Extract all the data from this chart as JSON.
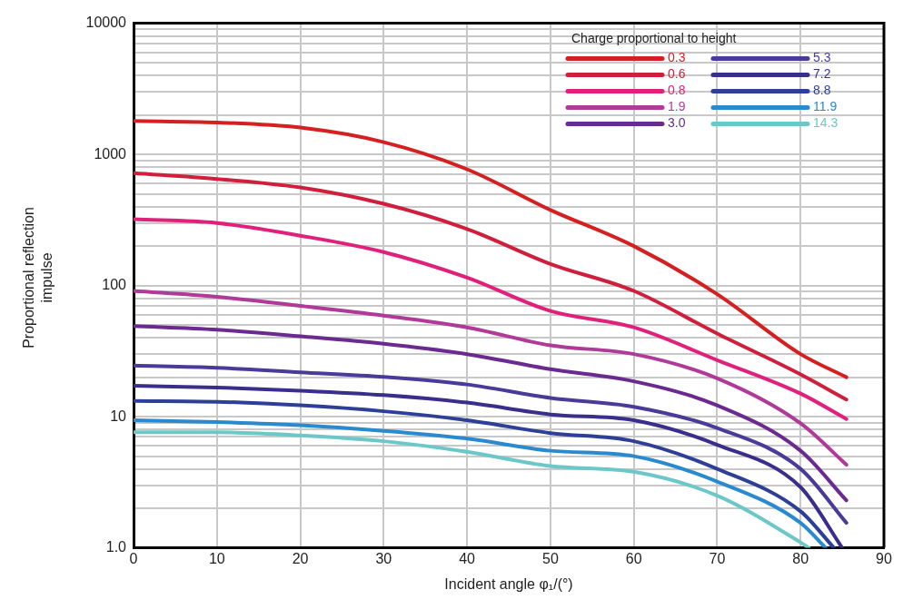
{
  "chart_data": {
    "type": "line",
    "xlabel": "Incident angle φ₁/(°)",
    "ylabel": "Proportional reflection impulse",
    "legend_title": "Charge proportional to height",
    "log": "y",
    "grid": true,
    "legend": "top right",
    "marker": "none",
    "xlim": [
      0,
      90
    ],
    "xticks": [
      0,
      10,
      20,
      30,
      40,
      50,
      60,
      70,
      80,
      90
    ],
    "ylim": [
      1,
      10000
    ],
    "yticks": [
      {
        "value": 1,
        "label": "1.0"
      },
      {
        "value": 2,
        "label": null
      },
      {
        "value": 3,
        "label": null
      },
      {
        "value": 4,
        "label": null
      },
      {
        "value": 5,
        "label": null
      },
      {
        "value": 6,
        "label": null
      },
      {
        "value": 7,
        "label": null
      },
      {
        "value": 8,
        "label": null
      },
      {
        "value": 9,
        "label": null
      },
      10,
      {
        "value": 20,
        "label": null
      },
      {
        "value": 30,
        "label": null
      },
      {
        "value": 40,
        "label": null
      },
      {
        "value": 50,
        "label": null
      },
      {
        "value": 60,
        "label": null
      },
      {
        "value": 70,
        "label": null
      },
      {
        "value": 80,
        "label": null
      },
      {
        "value": 90,
        "label": null
      },
      100,
      {
        "value": 200,
        "label": null
      },
      {
        "value": 300,
        "label": null
      },
      {
        "value": 400,
        "label": null
      },
      {
        "value": 500,
        "label": null
      },
      {
        "value": 600,
        "label": null
      },
      {
        "value": 700,
        "label": null
      },
      {
        "value": 800,
        "label": null
      },
      {
        "value": 900,
        "label": null
      },
      1000,
      {
        "value": 2000,
        "label": null
      },
      {
        "value": 3000,
        "label": null
      },
      {
        "value": 4000,
        "label": null
      },
      {
        "value": 5000,
        "label": null
      },
      {
        "value": 6000,
        "label": null
      },
      {
        "value": 7000,
        "label": null
      },
      {
        "value": 8000,
        "label": null
      },
      {
        "value": 9000,
        "label": null
      },
      10000
    ],
    "series": [
      {
        "name": "0.3",
        "color": "#d42020",
        "x": [
          0,
          10,
          20,
          30,
          40,
          50,
          60,
          70,
          80,
          85.5
        ],
        "values": [
          1800,
          1750,
          1600,
          1240,
          770,
          377,
          200,
          86,
          30,
          20
        ]
      },
      {
        "name": "0.6",
        "color": "#d01f3c",
        "x": [
          0,
          10,
          20,
          30,
          40,
          50,
          60,
          70,
          80,
          85.5
        ],
        "values": [
          720,
          650,
          560,
          420,
          270,
          146,
          91,
          43,
          21,
          13.5
        ]
      },
      {
        "name": "0.8",
        "color": "#e0207a",
        "x": [
          0,
          10,
          20,
          30,
          40,
          50,
          60,
          70,
          80,
          85.5
        ],
        "values": [
          320,
          300,
          240,
          180,
          115,
          64,
          48,
          27,
          15,
          9.6
        ]
      },
      {
        "name": "1.9",
        "color": "#b03a98",
        "x": [
          0,
          10,
          20,
          30,
          40,
          50,
          60,
          70,
          80,
          85.5
        ],
        "values": [
          91,
          82,
          70,
          59,
          48,
          35,
          30,
          19.6,
          8.9,
          4.3
        ]
      },
      {
        "name": "3.0",
        "color": "#6a2a90",
        "x": [
          0,
          10,
          20,
          30,
          40,
          50,
          60,
          70,
          80,
          85.5
        ],
        "values": [
          49,
          46,
          41,
          36,
          30,
          23,
          18.6,
          12.2,
          5.5,
          2.3
        ]
      },
      {
        "name": "5.3",
        "color": "#4a3a9a",
        "x": [
          0,
          10,
          20,
          30,
          40,
          50,
          60,
          70,
          80,
          85.5
        ],
        "values": [
          24.5,
          23.6,
          21.8,
          20.1,
          17.6,
          13.9,
          11.9,
          8.2,
          4,
          1.55
        ]
      },
      {
        "name": "7.2",
        "color": "#3a2e8c",
        "x": [
          0,
          10,
          20,
          30,
          40,
          50,
          60,
          70,
          80,
          85
        ],
        "values": [
          17.2,
          16.7,
          15.8,
          14.6,
          12.8,
          10.4,
          9.4,
          6.1,
          2.9,
          1
        ]
      },
      {
        "name": "8.8",
        "color": "#2e3f98",
        "x": [
          0,
          10,
          20,
          30,
          40,
          50,
          60,
          70,
          80,
          84
        ],
        "values": [
          13.2,
          13,
          12.2,
          11,
          9.4,
          7.5,
          6.5,
          4,
          1.9,
          1
        ]
      },
      {
        "name": "11.9",
        "color": "#2a8ad0",
        "x": [
          0,
          10,
          20,
          30,
          40,
          50,
          60,
          70,
          80,
          83
        ],
        "values": [
          9.4,
          9.1,
          8.6,
          7.8,
          6.8,
          5.5,
          5,
          3.2,
          1.55,
          1
        ]
      },
      {
        "name": "14.3",
        "color": "#6cc8c8",
        "x": [
          0,
          10,
          20,
          30,
          40,
          50,
          60,
          70,
          80,
          81
        ],
        "values": [
          7.6,
          7.6,
          7.2,
          6.5,
          5.4,
          4.2,
          3.8,
          2.5,
          1.1,
          1
        ]
      }
    ]
  }
}
